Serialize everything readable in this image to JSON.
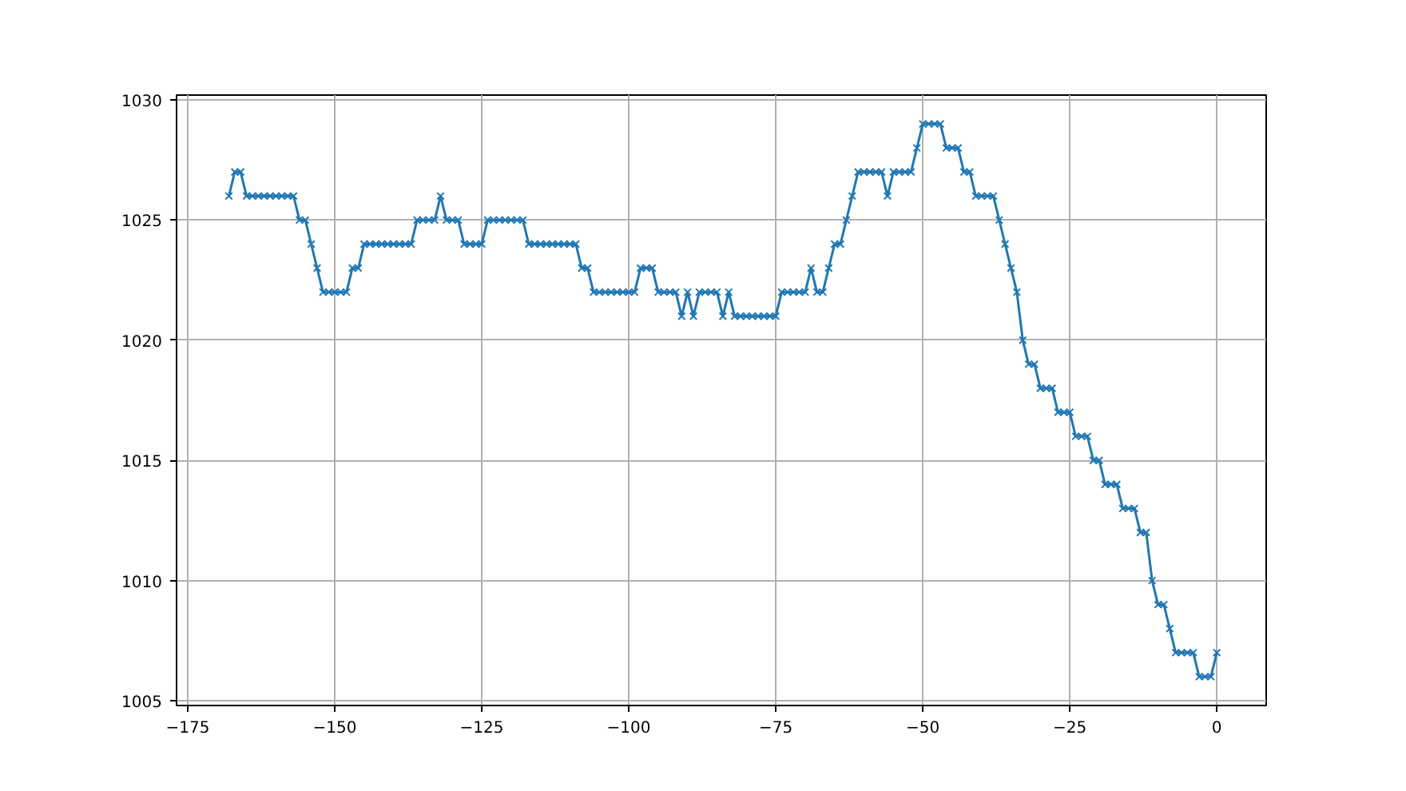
{
  "chart_data": {
    "type": "line",
    "marker": "cross",
    "line_style": "solid",
    "grid": true,
    "x": [
      -168,
      -167,
      -166,
      -165,
      -164,
      -163,
      -162,
      -161,
      -160,
      -159,
      -158,
      -157,
      -156,
      -155,
      -154,
      -153,
      -152,
      -151,
      -150,
      -149,
      -148,
      -147,
      -146,
      -145,
      -144,
      -143,
      -142,
      -141,
      -140,
      -139,
      -138,
      -137,
      -136,
      -135,
      -134,
      -133,
      -132,
      -131,
      -130,
      -129,
      -128,
      -127,
      -126,
      -125,
      -124,
      -123,
      -122,
      -121,
      -120,
      -119,
      -118,
      -117,
      -116,
      -115,
      -114,
      -113,
      -112,
      -111,
      -110,
      -109,
      -108,
      -107,
      -106,
      -105,
      -104,
      -103,
      -102,
      -101,
      -100,
      -99,
      -98,
      -97,
      -96,
      -95,
      -94,
      -93,
      -92,
      -91,
      -90,
      -89,
      -88,
      -87,
      -86,
      -85,
      -84,
      -83,
      -82,
      -81,
      -80,
      -79,
      -78,
      -77,
      -76,
      -75,
      -74,
      -73,
      -72,
      -71,
      -70,
      -69,
      -68,
      -67,
      -66,
      -65,
      -64,
      -63,
      -62,
      -61,
      -60,
      -59,
      -58,
      -57,
      -56,
      -55,
      -54,
      -53,
      -52,
      -51,
      -50,
      -49,
      -48,
      -47,
      -46,
      -45,
      -44,
      -43,
      -42,
      -41,
      -40,
      -39,
      -38,
      -37,
      -36,
      -35,
      -34,
      -33,
      -32,
      -31,
      -30,
      -29,
      -28,
      -27,
      -26,
      -25,
      -24,
      -23,
      -22,
      -21,
      -20,
      -19,
      -18,
      -17,
      -16,
      -15,
      -14,
      -13,
      -12,
      -11,
      -10,
      -9,
      -8,
      -7,
      -6,
      -5,
      -4,
      -3,
      -2,
      -1,
      0
    ],
    "series": [
      {
        "color": "#1f77b4",
        "values": [
          1026,
          1027,
          1027,
          1026,
          1026,
          1026,
          1026,
          1026,
          1026,
          1026,
          1026,
          1026,
          1025,
          1025,
          1024,
          1023,
          1022,
          1022,
          1022,
          1022,
          1022,
          1023,
          1023,
          1024,
          1024,
          1024,
          1024,
          1024,
          1024,
          1024,
          1024,
          1024,
          1025,
          1025,
          1025,
          1025,
          1026,
          1025,
          1025,
          1025,
          1024,
          1024,
          1024,
          1024,
          1025,
          1025,
          1025,
          1025,
          1025,
          1025,
          1025,
          1024,
          1024,
          1024,
          1024,
          1024,
          1024,
          1024,
          1024,
          1024,
          1023,
          1023,
          1022,
          1022,
          1022,
          1022,
          1022,
          1022,
          1022,
          1022,
          1023,
          1023,
          1023,
          1022,
          1022,
          1022,
          1022,
          1021,
          1022,
          1021,
          1022,
          1022,
          1022,
          1022,
          1021,
          1022,
          1021,
          1021,
          1021,
          1021,
          1021,
          1021,
          1021,
          1021,
          1022,
          1022,
          1022,
          1022,
          1022,
          1023,
          1022,
          1022,
          1023,
          1024,
          1024,
          1025,
          1026,
          1027,
          1027,
          1027,
          1027,
          1027,
          1026,
          1027,
          1027,
          1027,
          1027,
          1028,
          1029,
          1029,
          1029,
          1029,
          1028,
          1028,
          1028,
          1027,
          1027,
          1026,
          1026,
          1026,
          1026,
          1025,
          1024,
          1023,
          1022,
          1020,
          1019,
          1019,
          1018,
          1018,
          1018,
          1017,
          1017,
          1017,
          1016,
          1016,
          1016,
          1015,
          1015,
          1014,
          1014,
          1014,
          1013,
          1013,
          1013,
          1012,
          1012,
          1010,
          1009,
          1009,
          1008,
          1007,
          1007,
          1007,
          1007,
          1006,
          1006,
          1006,
          1007
        ]
      }
    ],
    "xlim": [
      -176.9,
      8.4
    ],
    "ylim": [
      1004.8,
      1030.2
    ],
    "xticks": [
      {
        "value": -175,
        "label": "−175"
      },
      {
        "value": -150,
        "label": "−150"
      },
      {
        "value": -125,
        "label": "−125"
      },
      {
        "value": -100,
        "label": "−100"
      },
      {
        "value": -75,
        "label": "−75"
      },
      {
        "value": -50,
        "label": "−50"
      },
      {
        "value": -25,
        "label": "−25"
      },
      0
    ],
    "yticks": [
      1005,
      1010,
      1015,
      1020,
      1025,
      1030
    ]
  }
}
